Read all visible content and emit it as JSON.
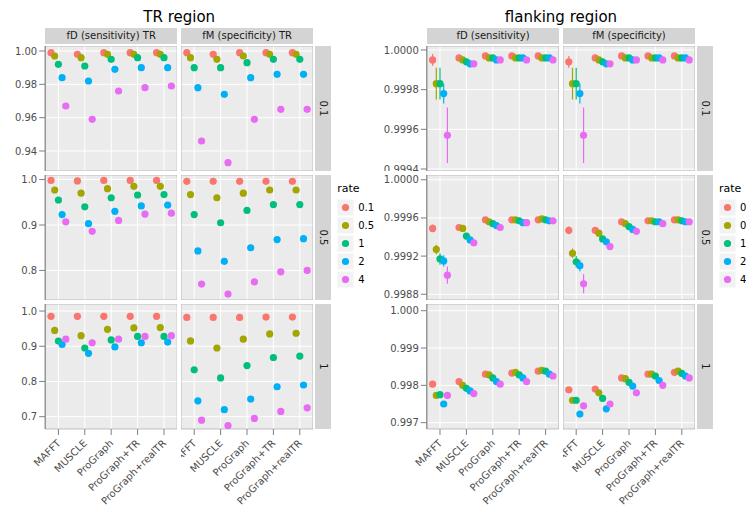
{
  "chart_data": [
    {
      "type": "scatter",
      "title": "TR region",
      "grid": true,
      "legend": "right",
      "legend_title": "rate",
      "marker": "circle",
      "categories": [
        "MAFFT",
        "MUSCLE",
        "ProGraph",
        "ProGraph+TR",
        "ProGraph+realTR"
      ],
      "columns": [
        "fD (sensitivity) TR",
        "fM (specificity) TR"
      ],
      "series": [
        {
          "name": "0.1",
          "color": "#F8766D"
        },
        {
          "name": "0.5",
          "color": "#A3A500"
        },
        {
          "name": "1",
          "color": "#00BF7D"
        },
        {
          "name": "2",
          "color": "#00B0F6"
        },
        {
          "name": "4",
          "color": "#E76BF3"
        }
      ],
      "rows": [
        {
          "label": "0.1",
          "ylim": [
            0.928,
            1.003
          ],
          "yticks": [
            0.94,
            0.96,
            0.98,
            {
              "value": 1,
              "label": "1.00"
            }
          ],
          "values": [
            [
              [
                0.999,
                0.998,
                0.999,
                0.999,
                0.999
              ],
              [
                0.997,
                0.996,
                0.998,
                0.998,
                0.998
              ],
              [
                0.992,
                0.991,
                0.995,
                0.996,
                0.996
              ],
              [
                0.984,
                0.982,
                0.989,
                0.99,
                0.99
              ],
              [
                0.967,
                0.959,
                0.976,
                0.978,
                0.979
              ]
            ],
            [
              [
                0.999,
                0.998,
                0.999,
                0.999,
                0.999
              ],
              [
                0.996,
                0.995,
                0.997,
                0.998,
                0.998
              ],
              [
                0.99,
                0.99,
                0.993,
                0.995,
                0.995
              ],
              [
                0.978,
                0.974,
                0.984,
                0.986,
                0.986
              ],
              [
                0.946,
                0.933,
                0.959,
                0.965,
                0.965
              ]
            ]
          ]
        },
        {
          "label": "0.5",
          "ylim": [
            0.735,
            1.01
          ],
          "yticks": [
            0.8,
            0.9,
            {
              "value": 1,
              "label": "1.0"
            }
          ],
          "values": [
            [
              [
                0.998,
                0.997,
                0.998,
                0.998,
                0.998
              ],
              [
                0.977,
                0.97,
                0.98,
                0.985,
                0.985
              ],
              [
                0.955,
                0.94,
                0.96,
                0.966,
                0.967
              ],
              [
                0.923,
                0.903,
                0.93,
                0.942,
                0.944
              ],
              [
                0.907,
                0.886,
                0.91,
                0.924,
                0.926
              ]
            ],
            [
              [
                0.996,
                0.996,
                0.996,
                0.996,
                0.996
              ],
              [
                0.967,
                0.96,
                0.97,
                0.977,
                0.977
              ],
              [
                0.923,
                0.905,
                0.932,
                0.945,
                0.945
              ],
              [
                0.843,
                0.82,
                0.85,
                0.868,
                0.87
              ],
              [
                0.77,
                0.748,
                0.775,
                0.797,
                0.8
              ]
            ]
          ]
        },
        {
          "label": "1",
          "ylim": [
            0.665,
            1.02
          ],
          "yticks": [
            0.7,
            0.8,
            0.9,
            {
              "value": 1,
              "label": "1.0"
            }
          ],
          "values": [
            [
              [
                0.985,
                0.985,
                0.985,
                0.985,
                0.985
              ],
              [
                0.945,
                0.93,
                0.948,
                0.952,
                0.953
              ],
              [
                0.915,
                0.895,
                0.918,
                0.928,
                0.928
              ],
              [
                0.905,
                0.88,
                0.898,
                0.91,
                0.912
              ],
              [
                0.92,
                0.91,
                0.92,
                0.928,
                0.93
              ]
            ],
            [
              [
                0.982,
                0.982,
                0.982,
                0.983,
                0.983
              ],
              [
                0.915,
                0.895,
                0.92,
                0.935,
                0.937
              ],
              [
                0.833,
                0.81,
                0.845,
                0.868,
                0.872
              ],
              [
                0.745,
                0.72,
                0.75,
                0.785,
                0.79
              ],
              [
                0.69,
                0.675,
                0.695,
                0.715,
                0.725
              ]
            ]
          ]
        }
      ]
    },
    {
      "type": "scatter",
      "title": "flanking region",
      "grid": true,
      "legend": "right",
      "legend_title": "rate",
      "marker": "circle",
      "categories": [
        "MAFFT",
        "MUSCLE",
        "ProGraph",
        "ProGraph+TR",
        "ProGraph+realTR"
      ],
      "columns": [
        "fD (sensitivity)",
        "fM (specificity)"
      ],
      "series": [
        {
          "name": "0.1",
          "color": "#F8766D"
        },
        {
          "name": "0.5",
          "color": "#A3A500"
        },
        {
          "name": "1",
          "color": "#00BF7D"
        },
        {
          "name": "2",
          "color": "#00B0F6"
        },
        {
          "name": "4",
          "color": "#E76BF3"
        }
      ],
      "rows": [
        {
          "label": "0.1",
          "ylim": [
            0.99939,
            1.00002
          ],
          "yticks": [
            0.9994,
            0.9996,
            0.9998,
            {
              "value": 1,
              "label": "1.0000"
            }
          ],
          "values": [
            [
              [
                0.99995,
                0.99996,
                0.99997,
                0.99997,
                0.99997
              ],
              [
                0.99983,
                0.99995,
                0.99996,
                0.99996,
                0.99996
              ],
              [
                0.99983,
                0.99994,
                0.99996,
                0.99996,
                0.99996
              ],
              [
                0.99978,
                0.99993,
                0.99995,
                0.99996,
                0.99996
              ],
              [
                0.99957,
                0.99993,
                0.99995,
                0.99995,
                0.99995
              ]
            ],
            [
              [
                0.99994,
                0.99996,
                0.99997,
                0.99997,
                0.99997
              ],
              [
                0.99983,
                0.99995,
                0.99996,
                0.99996,
                0.99996
              ],
              [
                0.99983,
                0.99994,
                0.99996,
                0.99996,
                0.99996
              ],
              [
                0.99978,
                0.99993,
                0.99995,
                0.99996,
                0.99996
              ],
              [
                0.99957,
                0.99993,
                0.99995,
                0.99995,
                0.99995
              ]
            ]
          ],
          "errors": [
            [
              [
                3e-05,
                1e-05,
                1e-05,
                1e-05,
                1e-05
              ],
              [
                8e-05,
                1e-05,
                1e-05,
                1e-05,
                1e-05
              ],
              [
                8e-05,
                1e-05,
                1e-05,
                1e-05,
                1e-05
              ],
              [
                5e-05,
                1e-05,
                1e-05,
                1e-05,
                1e-05
              ],
              [
                0.00014,
                1e-05,
                1e-05,
                1e-05,
                1e-05
              ]
            ],
            [
              [
                3e-05,
                1e-05,
                1e-05,
                1e-05,
                1e-05
              ],
              [
                8e-05,
                1e-05,
                1e-05,
                1e-05,
                1e-05
              ],
              [
                8e-05,
                1e-05,
                1e-05,
                1e-05,
                1e-05
              ],
              [
                5e-05,
                1e-05,
                1e-05,
                1e-05,
                1e-05
              ],
              [
                0.00014,
                1e-05,
                1e-05,
                1e-05,
                1e-05
              ]
            ]
          ]
        },
        {
          "label": "0.5",
          "ylim": [
            0.99874,
            1.00005
          ],
          "yticks": [
            0.9988,
            0.9992,
            0.9996,
            {
              "value": 1,
              "label": "1.0000"
            }
          ],
          "values": [
            [
              [
                0.99949,
                0.9995,
                0.99958,
                0.99958,
                0.99958
              ],
              [
                0.99927,
                0.99949,
                0.99956,
                0.99958,
                0.99959
              ],
              [
                0.99917,
                0.99941,
                0.99954,
                0.99957,
                0.99958
              ],
              [
                0.99915,
                0.99937,
                0.99952,
                0.99955,
                0.99957
              ],
              [
                0.999,
                0.99934,
                0.9995,
                0.99955,
                0.99957
              ]
            ],
            [
              [
                0.99947,
                0.99947,
                0.99956,
                0.99957,
                0.99958
              ],
              [
                0.99923,
                0.99944,
                0.99954,
                0.99957,
                0.99958
              ],
              [
                0.99914,
                0.99938,
                0.99951,
                0.99956,
                0.99957
              ],
              [
                0.9991,
                0.99935,
                0.99948,
                0.99956,
                0.99956
              ],
              [
                0.99891,
                0.9993,
                0.99946,
                0.99954,
                0.99956
              ]
            ]
          ],
          "errors": [
            [
              [
                4e-05,
                1e-05,
                1e-05,
                1e-05,
                1e-05
              ],
              [
                5e-05,
                2e-05,
                2e-05,
                1e-05,
                1e-05
              ],
              [
                6e-05,
                3e-05,
                2e-05,
                1e-05,
                1e-05
              ],
              [
                6e-05,
                3e-05,
                2e-05,
                1e-05,
                1e-05
              ],
              [
                9e-05,
                3e-05,
                2e-05,
                1e-05,
                1e-05
              ]
            ],
            [
              [
                4e-05,
                1e-05,
                1e-05,
                1e-05,
                1e-05
              ],
              [
                5e-05,
                2e-05,
                2e-05,
                1e-05,
                1e-05
              ],
              [
                6e-05,
                3e-05,
                2e-05,
                1e-05,
                1e-05
              ],
              [
                6e-05,
                3e-05,
                2e-05,
                1e-05,
                1e-05
              ],
              [
                0.0001,
                3e-05,
                2e-05,
                1e-05,
                1e-05
              ]
            ]
          ]
        },
        {
          "label": "1",
          "ylim": [
            0.99683,
            1.00018
          ],
          "yticks": [
            0.997,
            0.998,
            0.999,
            {
              "value": 1,
              "label": "1.000"
            }
          ],
          "values": [
            [
              [
                0.99803,
                0.9981,
                0.9983,
                0.99833,
                0.99838
              ],
              [
                0.99773,
                0.998,
                0.99828,
                0.99835,
                0.9984
              ],
              [
                0.99775,
                0.99792,
                0.9982,
                0.99828,
                0.99838
              ],
              [
                0.9975,
                0.99785,
                0.9981,
                0.9982,
                0.9983
              ],
              [
                0.99773,
                0.99778,
                0.99803,
                0.9981,
                0.99825
              ]
            ],
            [
              [
                0.99788,
                0.9979,
                0.9982,
                0.9983,
                0.99835
              ],
              [
                0.9976,
                0.9978,
                0.99818,
                0.9983,
                0.99838
              ],
              [
                0.9976,
                0.99765,
                0.99808,
                0.99825,
                0.99832
              ],
              [
                0.99723,
                0.99737,
                0.99798,
                0.99813,
                0.99825
              ],
              [
                0.99745,
                0.9975,
                0.9978,
                0.998,
                0.9982
              ]
            ]
          ],
          "errors": [
            [
              [
                8e-05,
                5e-05,
                4e-05,
                4e-05,
                4e-05
              ],
              [
                8e-05,
                5e-05,
                4e-05,
                4e-05,
                4e-05
              ],
              [
                8e-05,
                5e-05,
                4e-05,
                4e-05,
                4e-05
              ],
              [
                8e-05,
                5e-05,
                4e-05,
                4e-05,
                4e-05
              ],
              [
                8e-05,
                5e-05,
                4e-05,
                4e-05,
                4e-05
              ]
            ],
            [
              [
                8e-05,
                5e-05,
                4e-05,
                4e-05,
                4e-05
              ],
              [
                8e-05,
                5e-05,
                4e-05,
                4e-05,
                4e-05
              ],
              [
                8e-05,
                5e-05,
                4e-05,
                4e-05,
                4e-05
              ],
              [
                8e-05,
                5e-05,
                4e-05,
                4e-05,
                4e-05
              ],
              [
                8e-05,
                5e-05,
                4e-05,
                4e-05,
                4e-05
              ]
            ]
          ]
        }
      ]
    }
  ]
}
